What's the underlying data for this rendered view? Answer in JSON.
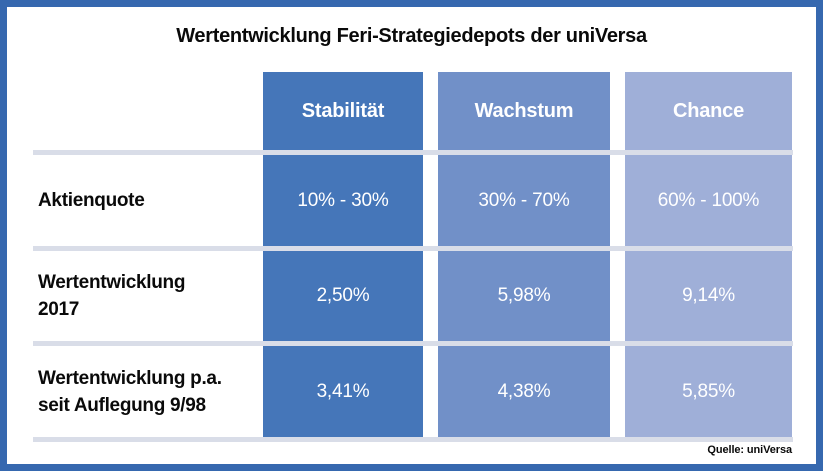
{
  "title": "Wertentwicklung Feri-Strategiedepots der uniVersa",
  "source": "Quelle: uniVersa",
  "colors": {
    "frame_border": "#3668AF",
    "column_stability": "#4576B9",
    "column_growth": "#7190C8",
    "column_chance": "#9FAFD8",
    "separator_line": "#D9DDE8",
    "text_on_blue": "#FFFFFF",
    "text_black": "#0A0A0A"
  },
  "columns": [
    {
      "label": "Stabilität",
      "color": "#4576B9"
    },
    {
      "label": "Wachstum",
      "color": "#7190C8"
    },
    {
      "label": "Chance",
      "color": "#9FAFD8"
    }
  ],
  "rows": [
    {
      "label_line1": "Aktienquote",
      "label_line2": "",
      "values": [
        "10% - 30%",
        "30% - 70%",
        "60% - 100%"
      ]
    },
    {
      "label_line1": "Wertentwicklung",
      "label_line2": "2017",
      "values": [
        "2,50%",
        "5,98%",
        "9,14%"
      ]
    },
    {
      "label_line1": "Wertentwicklung p.a.",
      "label_line2": "seit Auflegung 9/98",
      "values": [
        "3,41%",
        "4,38%",
        "5,85%"
      ]
    }
  ],
  "chart_data": {
    "type": "table",
    "title": "Wertentwicklung Feri-Strategiedepots der uniVersa",
    "columns": [
      "Stabilität",
      "Wachstum",
      "Chance"
    ],
    "rows": [
      {
        "label": "Aktienquote",
        "values": [
          "10% - 30%",
          "30% - 70%",
          "60% - 100%"
        ]
      },
      {
        "label": "Wertentwicklung 2017",
        "values": [
          "2,50%",
          "5,98%",
          "9,14%"
        ]
      },
      {
        "label": "Wertentwicklung p.a. seit Auflegung 9/98",
        "values": [
          "3,41%",
          "4,38%",
          "5,85%"
        ]
      }
    ],
    "equity_quota_ranges": {
      "Stabilität": [
        10,
        30
      ],
      "Wachstum": [
        30,
        70
      ],
      "Chance": [
        60,
        100
      ]
    },
    "performance_2017_pct": {
      "Stabilität": 2.5,
      "Wachstum": 5.98,
      "Chance": 9.14
    },
    "performance_pa_since_9_98_pct": {
      "Stabilität": 3.41,
      "Wachstum": 4.38,
      "Chance": 5.85
    },
    "source": "Quelle: uniVersa",
    "layout": {
      "legend": false,
      "grid": false
    }
  }
}
